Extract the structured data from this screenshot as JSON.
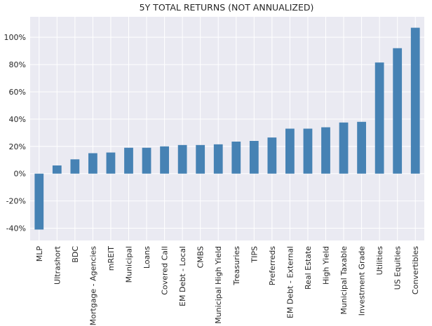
{
  "chart_data": {
    "type": "bar",
    "title": "5Y TOTAL RETURNS (NOT ANNUALIZED)",
    "xlabel": "",
    "ylabel": "",
    "categories": [
      "MLP",
      "Ultrashort",
      "BDC",
      "Mortgage - Agencies",
      "mREIT",
      "Municipal",
      "Loans",
      "Covered Call",
      "EM Debt - Local",
      "CMBS",
      "Municipal High Yield",
      "Treasuries",
      "TIPS",
      "Preferreds",
      "EM Debt - External",
      "Real Estate",
      "High Yield",
      "Municipal Taxable",
      "Investment Grade",
      "Utilities",
      "US Equities",
      "Convertibles"
    ],
    "values": [
      -41,
      6,
      10.5,
      15,
      15.5,
      19,
      19,
      20,
      21,
      21,
      21.5,
      23.5,
      24,
      26.5,
      33,
      33,
      34,
      37.5,
      38,
      81.5,
      92,
      107
    ],
    "ylim": [
      -49,
      115
    ],
    "yticks": [
      -40,
      -20,
      0,
      20,
      40,
      60,
      80,
      100
    ],
    "ytick_labels": [
      "-40%",
      "-20%",
      "0%",
      "20%",
      "40%",
      "60%",
      "80%",
      "100%"
    ],
    "grid": true,
    "legend": "none",
    "colors": {
      "bar": "#4682b4",
      "background": "#eaeaf2",
      "grid": "#ffffff"
    }
  }
}
